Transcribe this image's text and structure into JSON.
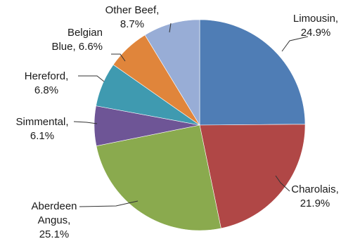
{
  "chart_data": {
    "type": "pie",
    "title": "",
    "start": "12 o'clock",
    "direction": "clockwise",
    "slices": [
      {
        "label": "Limousin",
        "value": 24.9,
        "value_text": "24.9%",
        "color": "#4f7db5"
      },
      {
        "label": "Charolais",
        "value": 21.9,
        "value_text": "21.9%",
        "color": "#b04746"
      },
      {
        "label": "Aberdeen Angus",
        "value": 25.1,
        "value_text": "25.1%",
        "color": "#8aaa4e"
      },
      {
        "label": "Simmental",
        "value": 6.1,
        "value_text": "6.1%",
        "color": "#6e5596"
      },
      {
        "label": "Hereford",
        "value": 6.8,
        "value_text": "6.8%",
        "color": "#3f9ab0"
      },
      {
        "label": "Belgian Blue",
        "value": 6.6,
        "value_text": "6.6%",
        "color": "#e0853b"
      },
      {
        "label": "Other Beef",
        "value": 8.7,
        "value_text": "8.7%",
        "color": "#98add6"
      }
    ],
    "legend": "none"
  }
}
